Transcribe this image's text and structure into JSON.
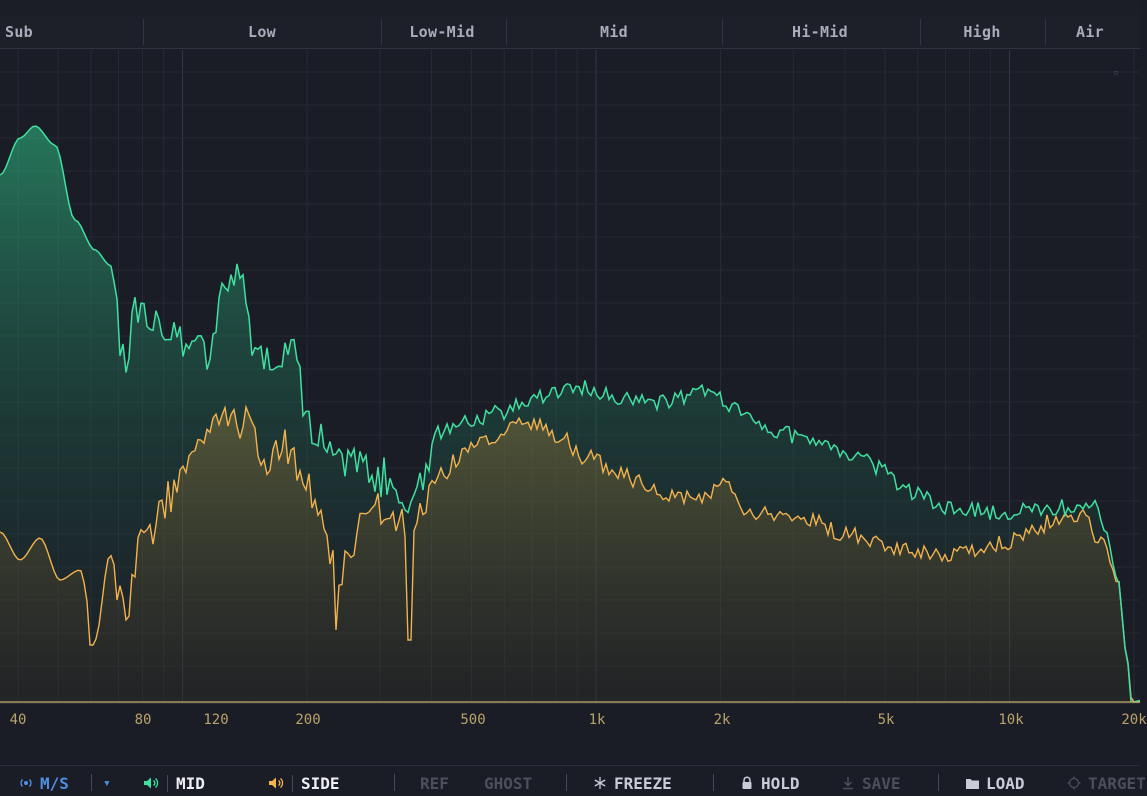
{
  "bands": [
    {
      "id": "sub",
      "label": "Sub"
    },
    {
      "id": "low",
      "label": "Low"
    },
    {
      "id": "low_mid",
      "label": "Low-Mid"
    },
    {
      "id": "mid",
      "label": "Mid"
    },
    {
      "id": "hi_mid",
      "label": "Hi-Mid"
    },
    {
      "id": "high",
      "label": "High"
    },
    {
      "id": "air",
      "label": "Air"
    }
  ],
  "freq_ticks": [
    "40",
    "80",
    "120",
    "200",
    "500",
    "1k",
    "2k",
    "5k",
    "10k",
    "20k"
  ],
  "toolbar": {
    "ms_label": "M/S",
    "dropdown_glyph": "▾",
    "mid_label": "MID",
    "side_label": "SIDE",
    "ref_label": "REF",
    "ghost_label": "GHOST",
    "freeze_label": "FREEZE",
    "hold_label": "HOLD",
    "save_label": "SAVE",
    "load_label": "LOAD",
    "target_label": "TARGET"
  },
  "colors": {
    "mid_trace": "#3fe0a0",
    "side_trace": "#f2b24e",
    "accent_blue": "#4f8fe6",
    "background": "#1b1d26"
  }
}
